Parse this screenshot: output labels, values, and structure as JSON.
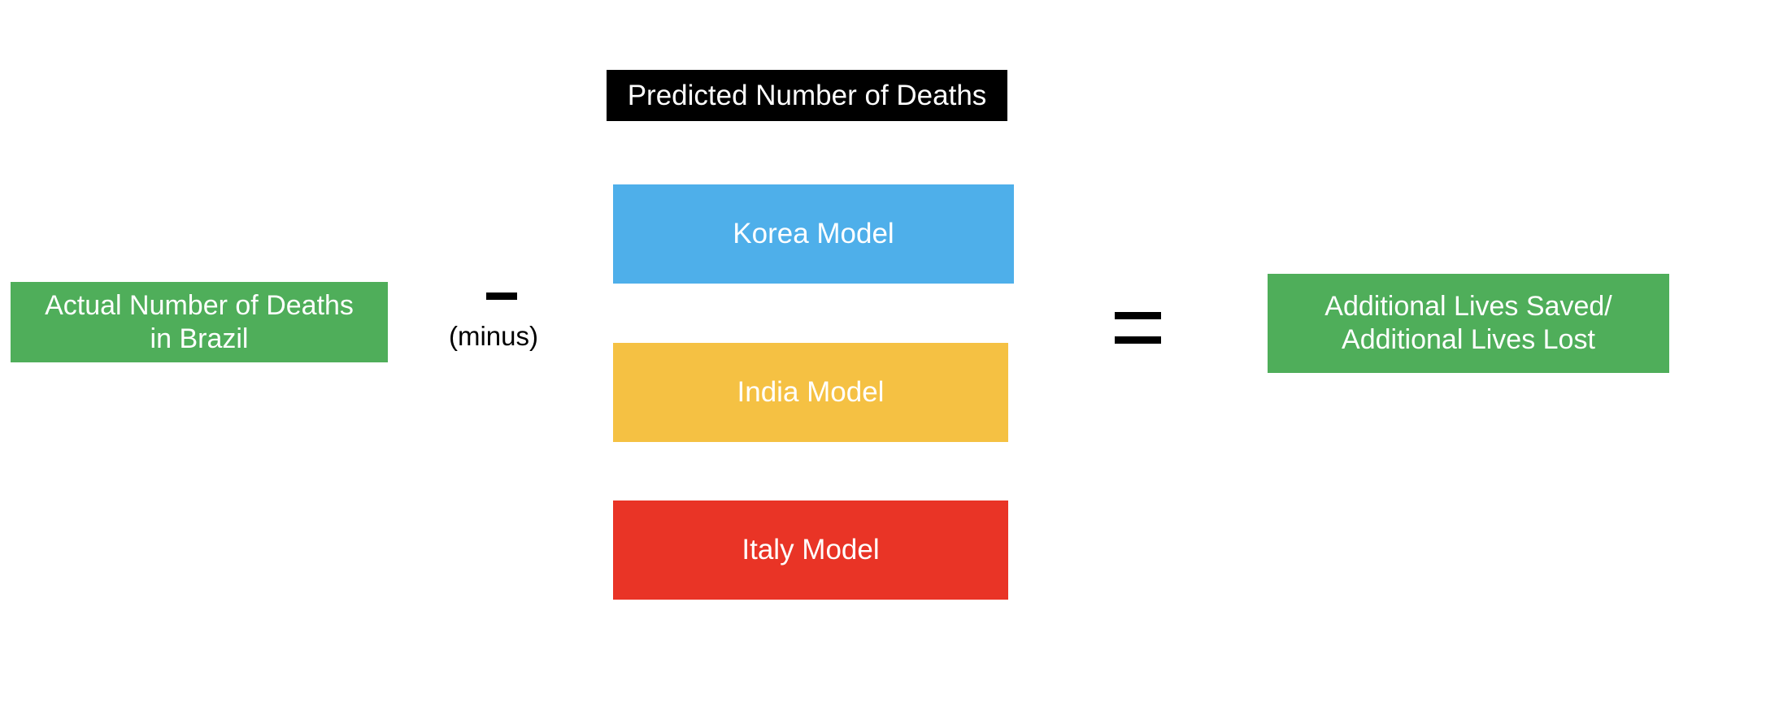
{
  "colors": {
    "green": "#4FAE5A",
    "black": "#000000",
    "blue": "#4EAFEA",
    "yellow": "#F5C143",
    "red": "#E93426",
    "text_on_box": "#FFFFFF"
  },
  "actual": {
    "label": "Actual Number of Deaths\nin Brazil"
  },
  "operator_minus": {
    "caption": "(minus)"
  },
  "predicted": {
    "header": "Predicted Number of Deaths",
    "models": [
      {
        "label": "Korea Model"
      },
      {
        "label": "India Model"
      },
      {
        "label": "Italy Model"
      }
    ]
  },
  "result": {
    "label": "Additional Lives Saved/\nAdditional Lives Lost"
  }
}
